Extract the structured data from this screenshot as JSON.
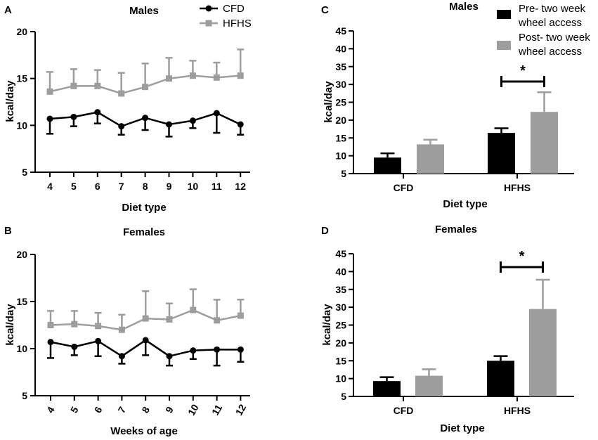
{
  "colors": {
    "black": "#000000",
    "gray": "#9d9d9d",
    "text": "#000000"
  },
  "chart_data": [
    {
      "panel": "A",
      "type": "line",
      "title": "Males",
      "xlabel": "Diet type",
      "ylabel": "kcal/day",
      "x": [
        4,
        5,
        6,
        7,
        8,
        9,
        10,
        11,
        12
      ],
      "ylim": [
        5,
        20
      ],
      "yticks": [
        5,
        10,
        15,
        20
      ],
      "series": [
        {
          "name": "CFD",
          "color": "#000000",
          "marker": "circle",
          "values": [
            10.7,
            10.9,
            11.4,
            9.9,
            10.8,
            10.1,
            10.5,
            11.3,
            10.1
          ],
          "errors": [
            1.6,
            1.0,
            1.2,
            0.9,
            1.3,
            1.3,
            0.8,
            2.1,
            1.1
          ]
        },
        {
          "name": "HFHS",
          "color": "#9d9d9d",
          "marker": "square",
          "values": [
            13.6,
            14.2,
            14.2,
            13.4,
            14.1,
            15.0,
            15.3,
            15.1,
            15.3
          ],
          "errors": [
            2.1,
            1.8,
            1.7,
            2.2,
            2.5,
            2.2,
            1.6,
            1.6,
            2.8
          ]
        }
      ]
    },
    {
      "panel": "B",
      "type": "line",
      "title": "Females",
      "xlabel": "Weeks of age",
      "ylabel": "kcal/day",
      "x": [
        4,
        5,
        6,
        7,
        8,
        9,
        10,
        11,
        12
      ],
      "ylim": [
        5,
        20
      ],
      "yticks": [
        5,
        10,
        15,
        20
      ],
      "series": [
        {
          "name": "CFD",
          "color": "#000000",
          "marker": "circle",
          "values": [
            10.7,
            10.2,
            10.8,
            9.2,
            10.9,
            9.2,
            9.8,
            9.9,
            9.9
          ],
          "errors": [
            1.7,
            0.9,
            1.6,
            0.8,
            1.6,
            1.0,
            0.9,
            1.7,
            1.3
          ]
        },
        {
          "name": "HFHS",
          "color": "#9d9d9d",
          "marker": "square",
          "values": [
            12.5,
            12.6,
            12.4,
            12.0,
            13.2,
            13.1,
            14.1,
            13.0,
            13.5
          ],
          "errors": [
            1.5,
            1.4,
            1.4,
            1.6,
            2.9,
            1.7,
            2.2,
            2.2,
            1.7
          ]
        }
      ]
    },
    {
      "panel": "C",
      "type": "bar",
      "title": "Males",
      "xlabel": "Diet type",
      "ylabel": "kcal/day",
      "categories": [
        "CFD",
        "HFHS"
      ],
      "ylim": [
        5,
        45
      ],
      "yticks": [
        5,
        10,
        15,
        20,
        25,
        30,
        35,
        40,
        45
      ],
      "series": [
        {
          "name": "Pre- two week wheel access",
          "color": "#000000",
          "values": [
            9.5,
            16.4
          ],
          "errors": [
            1.2,
            1.3
          ]
        },
        {
          "name": "Post- two week wheel access",
          "color": "#9d9d9d",
          "values": [
            13.2,
            22.3
          ],
          "errors": [
            1.3,
            5.5
          ]
        }
      ],
      "significance": {
        "category": "HFHS",
        "label": "*"
      }
    },
    {
      "panel": "D",
      "type": "bar",
      "title": "Females",
      "xlabel": "Diet type",
      "ylabel": "kcal/day",
      "categories": [
        "CFD",
        "HFHS"
      ],
      "ylim": [
        5,
        45
      ],
      "yticks": [
        5,
        10,
        15,
        20,
        25,
        30,
        35,
        40,
        45
      ],
      "series": [
        {
          "name": "Pre- two week wheel access",
          "color": "#000000",
          "values": [
            9.3,
            15.0
          ],
          "errors": [
            1.1,
            1.3
          ]
        },
        {
          "name": "Post- two week wheel access",
          "color": "#9d9d9d",
          "values": [
            10.8,
            29.5
          ],
          "errors": [
            1.8,
            8.2
          ]
        }
      ],
      "significance": {
        "category": "HFHS",
        "label": "*"
      }
    }
  ]
}
